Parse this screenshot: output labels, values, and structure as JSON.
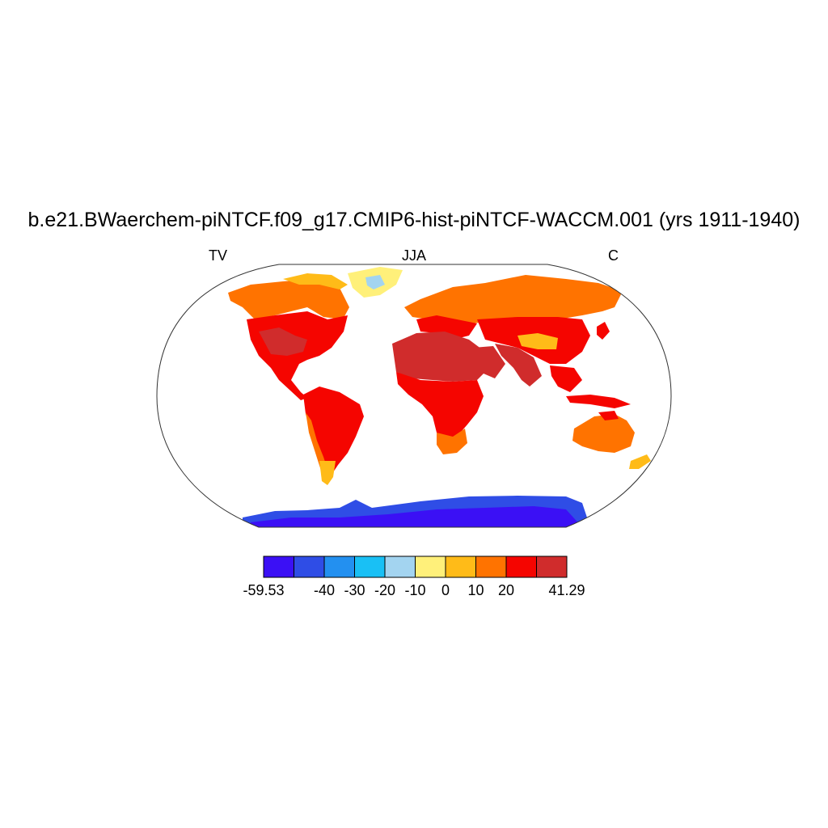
{
  "title": "b.e21.BWaerchem-piNTCF.f09_g17.CMIP6-hist-piNTCF-WACCM.001 (yrs 1911-1940)",
  "left_string": "TV",
  "center_string": "JJA",
  "right_string": "C",
  "projection": "Robinson (global, centered on 0°)",
  "variable_units": "C",
  "season": "JJA",
  "colorbar": {
    "min_label": "-59.53",
    "max_label": "41.29",
    "tick_labels": [
      "-59.53",
      "-40",
      "-30",
      "-20",
      "-10",
      "0",
      "10",
      "20",
      "41.29"
    ],
    "levels": [
      -59.53,
      -50,
      -40,
      -30,
      -20,
      -10,
      0,
      10,
      20,
      30,
      41.29
    ],
    "colors": [
      "#3b10f5",
      "#2f4de6",
      "#2390f0",
      "#19c0f5",
      "#a3d4f0",
      "#fff07a",
      "#ffbb18",
      "#ff7300",
      "#f50500",
      "#d02c2c"
    ]
  },
  "regions": [
    {
      "name": "Antarctica",
      "color": "#3b10f5"
    },
    {
      "name": "Antarctica coast",
      "color": "#2f4de6"
    },
    {
      "name": "Greenland interior",
      "color": "#a3d4f0"
    },
    {
      "name": "Greenland margin",
      "color": "#fff07a"
    },
    {
      "name": "Sahara / Middle East",
      "color": "#d02c2c"
    },
    {
      "name": "Tropics",
      "color": "#f50500"
    },
    {
      "name": "Boreal",
      "color": "#ff7300"
    },
    {
      "name": "Tibetan Plateau / Andes",
      "color": "#ffbb18"
    }
  ]
}
